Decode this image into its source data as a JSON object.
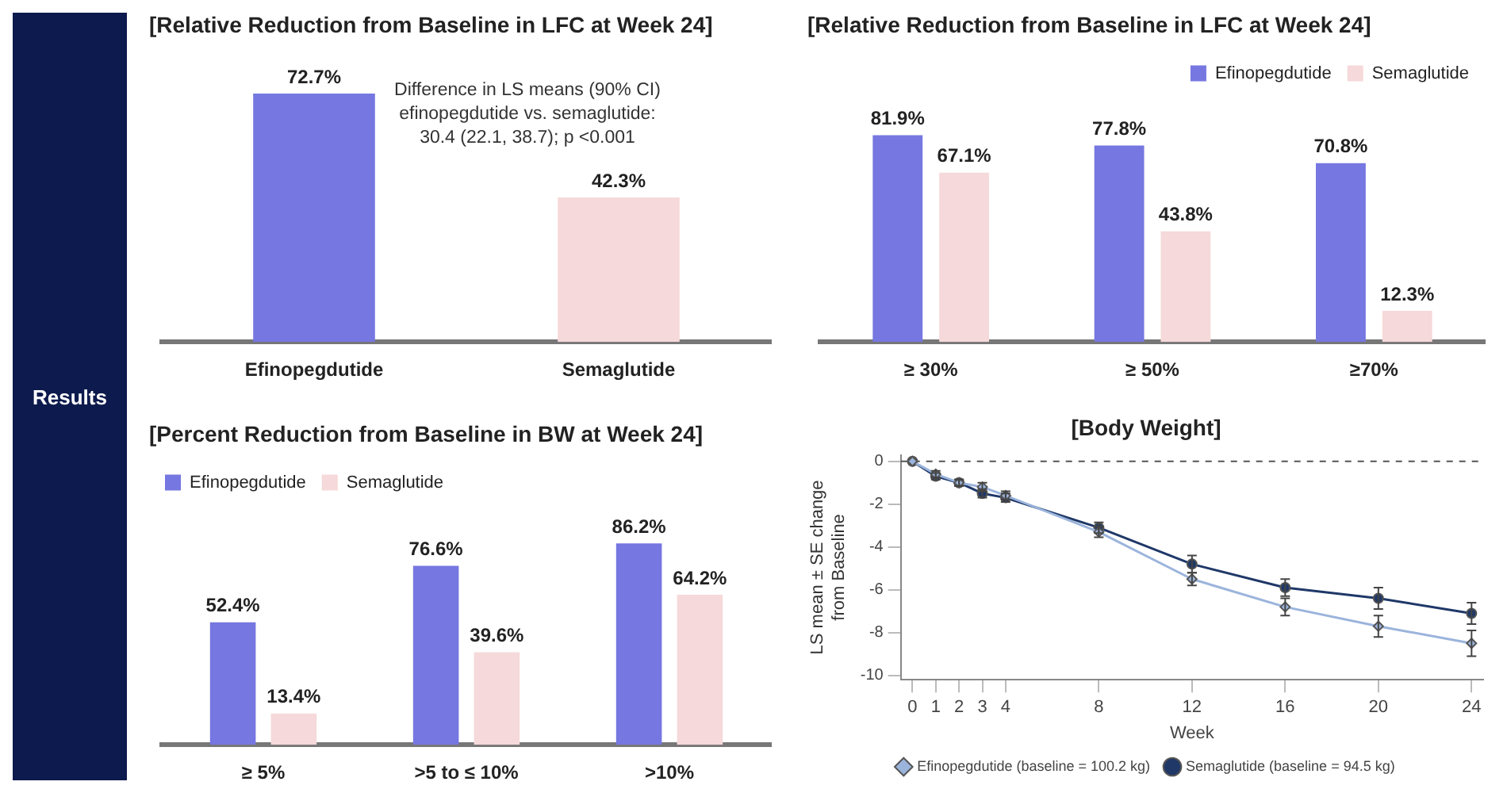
{
  "chart_data": [
    {
      "type": "other",
      "title": "Results"
    },
    {
      "type": "bar",
      "title": "[Relative Reduction from Baseline in LFC at Week 24]",
      "categories": [
        "Efinopegdutide",
        "Semaglutide"
      ],
      "values": [
        72.7,
        42.3
      ],
      "colors": [
        "#7677e0",
        "#f6d9da"
      ],
      "value_labels": [
        "72.7%",
        "42.3%"
      ],
      "annotations": [
        "Difference in LS means (90% CI) efinopegdutide vs. semaglutide: 30.4 (22.1, 38.7); p <0.001"
      ],
      "legend": false
    },
    {
      "type": "bar",
      "title": "[Relative Reduction from Baseline in LFC at Week 24]",
      "categories": [
        "≥ 30%",
        "≥ 50%",
        "≥70%"
      ],
      "series": [
        {
          "name": "Efinopegdutide",
          "color": "#7677e0",
          "values": [
            81.9,
            77.8,
            70.8
          ],
          "value_labels": [
            "81.9%",
            "77.8%",
            "70.8%"
          ]
        },
        {
          "name": "Semaglutide",
          "color": "#f6d9da",
          "values": [
            67.1,
            43.8,
            12.3
          ],
          "value_labels": [
            "67.1%",
            "43.8%",
            "12.3%"
          ]
        }
      ],
      "legend": "top right"
    },
    {
      "type": "bar",
      "title": "[Percent Reduction from Baseline in BW at Week 24]",
      "categories": [
        "≥ 5%",
        ">5 to ≤ 10%",
        ">10%"
      ],
      "series": [
        {
          "name": "Efinopegdutide",
          "color": "#7677e0",
          "values": [
            52.4,
            76.6,
            86.2
          ],
          "value_labels": [
            "52.4%",
            "76.6%",
            "86.2%"
          ]
        },
        {
          "name": "Semaglutide",
          "color": "#f6d9da",
          "values": [
            13.4,
            39.6,
            64.2
          ],
          "value_labels": [
            "13.4%",
            "39.6%",
            "64.2%"
          ]
        }
      ],
      "legend": "top left"
    },
    {
      "type": "line",
      "title": "[Body Weight]",
      "xlabel": "Week",
      "ylabel": "LS mean ± SE change from Baseline",
      "x": [
        0,
        1,
        2,
        3,
        4,
        8,
        12,
        16,
        20,
        24
      ],
      "series": [
        {
          "name": "Efinopegdutide (baseline = 100.2 kg)",
          "color": "#9bb4dc",
          "marker": "diamond",
          "values": [
            0,
            -0.6,
            -1.0,
            -1.2,
            -1.6,
            -3.3,
            -5.5,
            -6.8,
            -7.7,
            -8.5
          ],
          "errors": [
            null,
            0.15,
            0.15,
            0.2,
            0.2,
            0.25,
            0.3,
            0.4,
            0.5,
            0.6
          ]
        },
        {
          "name": "Semaglutide (baseline = 94.5 kg)",
          "color": "#1f3868",
          "marker": "circle",
          "values": [
            0,
            -0.7,
            -1.0,
            -1.5,
            -1.7,
            -3.1,
            -4.8,
            -5.9,
            -6.4,
            -7.1
          ],
          "errors": [
            null,
            0.15,
            0.15,
            0.2,
            0.2,
            0.25,
            0.4,
            0.4,
            0.5,
            0.5
          ]
        }
      ],
      "xlim": [
        -0.5,
        24.5
      ],
      "xticks": [
        0,
        1,
        2,
        3,
        4,
        8,
        12,
        16,
        20,
        24
      ],
      "ylim": [
        -10.2,
        0.3
      ],
      "yticks": [
        0,
        -2,
        -4,
        -6,
        -8,
        -10
      ],
      "ref_lines": [
        {
          "axis": "y",
          "value": 0,
          "line_style": "dashed",
          "color": "#555555"
        }
      ],
      "grid": false,
      "legend": "bottom",
      "line_style": "solid"
    }
  ]
}
